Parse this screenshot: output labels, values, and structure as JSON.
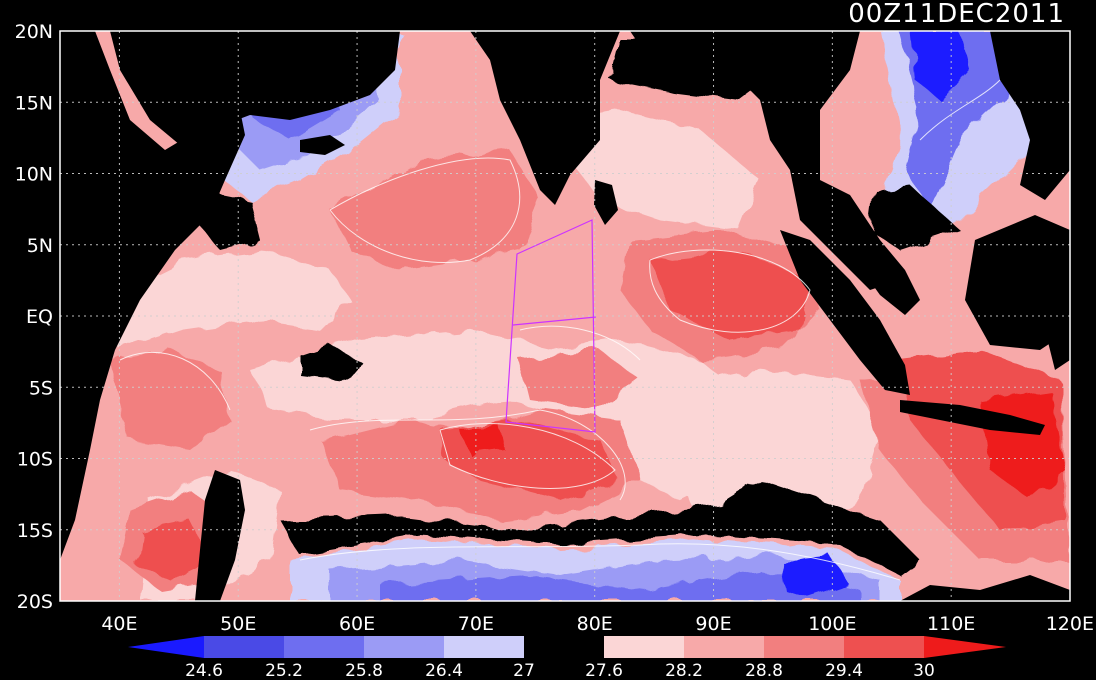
{
  "header": {
    "timestamp": "00Z11DEC2011"
  },
  "axes": {
    "lat_labels": [
      "20N",
      "15N",
      "10N",
      "5N",
      "EQ",
      "5S",
      "10S",
      "15S",
      "20S"
    ],
    "lon_labels": [
      "40E",
      "50E",
      "60E",
      "70E",
      "80E",
      "90E",
      "100E",
      "110E",
      "120E"
    ]
  },
  "colorbar": {
    "ticks": [
      "24.6",
      "25.2",
      "25.8",
      "26.4",
      "27",
      "27.6",
      "28.2",
      "28.8",
      "29.4",
      "30"
    ],
    "colors": [
      "#1a1aff",
      "#4a4ae6",
      "#6e6ef0",
      "#9b9bf5",
      "#cfcffa",
      "#000000",
      "#fbd6d6",
      "#f7a9a9",
      "#f27f7f",
      "#ee5050",
      "#ee1b1b"
    ]
  },
  "map": {
    "lon_range": [
      35,
      120
    ],
    "lat_range": [
      -20,
      20
    ],
    "grid": "dotted",
    "colors": {
      "sst_28_2": "#fbd6d6",
      "sst_28_8": "#f7a9a9",
      "sst_29_4": "#f27f7f",
      "sst_30": "#ee5050",
      "sst_max": "#ee1b1b",
      "cool_1": "#cfcffa",
      "cool_2": "#9b9bf5",
      "cool_3": "#6e6ef0",
      "cool_4": "#4a4ae6",
      "cool_5": "#1a1aff",
      "box": "#cc33ff"
    }
  }
}
